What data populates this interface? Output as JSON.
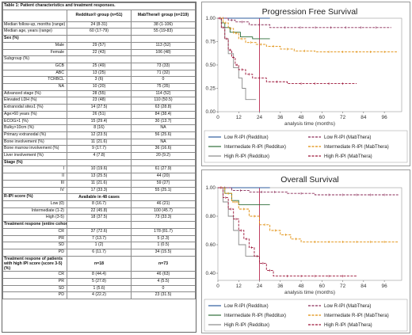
{
  "table": {
    "title": "Table 1: Patient characteristics and treatment responses.",
    "columns": [
      "",
      "Redditux® group (n=51)",
      "MabThera® group (n=219)"
    ],
    "rows": [
      {
        "label": "Median follow-up, months (range)",
        "a": "24 (8-31)",
        "b": "38 (1-106)"
      },
      {
        "label": "Median age, years (range)",
        "a": "60 (17-79)",
        "b": "55 (19-83)"
      },
      {
        "label": "Sex (%)",
        "a": "",
        "b": "",
        "kind": "section"
      },
      {
        "label": "Male",
        "a": "29 (57)",
        "b": "113 (52)",
        "kind": "sub"
      },
      {
        "label": "Female",
        "a": "22 (43)",
        "b": "106 (48)",
        "kind": "sub"
      },
      {
        "label": "Subgroup (%)",
        "a": "",
        "b": "",
        "kind": "plain"
      },
      {
        "label": "GCB",
        "a": "25 (49)",
        "b": "73 (33)",
        "kind": "sub"
      },
      {
        "label": "ABC",
        "a": "13 (25)",
        "b": "71 (32)",
        "kind": "sub"
      },
      {
        "label": "TCRBCL",
        "a": "3 (6)",
        "b": "0",
        "kind": "sub"
      },
      {
        "label": "NA",
        "a": "10 (20)",
        "b": "75 (35)",
        "kind": "sub"
      },
      {
        "label": "Advanced stage (%)",
        "a": "28 (55)",
        "b": "114 (52)"
      },
      {
        "label": "Elevated LDH (%)",
        "a": "23 (48)",
        "b": "110 (50.5)"
      },
      {
        "label": "Extranodal site≥1 (%)",
        "a": "14 (27.5)",
        "b": "63 (28.8)"
      },
      {
        "label": "Age>60 years (%)",
        "a": "26 (51)",
        "b": "84 (38.4)"
      },
      {
        "label": "ECOG>1 (%)",
        "a": "15 (29.4)",
        "b": "30 (13.7)"
      },
      {
        "label": "Bulky>10cm (%)",
        "a": "8 (16)",
        "b": "NA"
      },
      {
        "label": "Primary extranodal (%)",
        "a": "12 (23.5)",
        "b": "56 (25.6)"
      },
      {
        "label": "Bone involvement (%)",
        "a": "11 (21.6)",
        "b": "NA"
      },
      {
        "label": "Bone marrow involvement (%)",
        "a": "9 (17.7)",
        "b": "36 (16.6)"
      },
      {
        "label": "Liver involvement (%)",
        "a": "4 (7.8)",
        "b": "20 (9.2)"
      },
      {
        "label": "Stage (%)",
        "a": "",
        "b": "",
        "kind": "section"
      },
      {
        "label": "I",
        "a": "10 (19.6)",
        "b": "61 (27.9)",
        "kind": "sub"
      },
      {
        "label": "II",
        "a": "13 (25.5)",
        "b": "44 (20)",
        "kind": "sub"
      },
      {
        "label": "III",
        "a": "11 (21.6)",
        "b": "59 (27)",
        "kind": "sub"
      },
      {
        "label": "IV",
        "a": "17 (33.3)",
        "b": "55 (25.1)",
        "kind": "sub"
      },
      {
        "label": "R-IPI score (%)",
        "a": "Available in 48 cases",
        "b": "",
        "kind": "section",
        "wrap": "val"
      },
      {
        "label": "Low (0)",
        "a": "8 (16.7)",
        "b": "46 (21)",
        "kind": "sub"
      },
      {
        "label": "Intermediate (1-2)",
        "a": "22 (45.8)",
        "b": "100 (45.7)",
        "kind": "sub"
      },
      {
        "label": "High (3-5)",
        "a": "18 (37.5)",
        "b": "73 (33.3)",
        "kind": "sub"
      },
      {
        "label": "Treatment respone (entire cohort) (%)",
        "a": "",
        "b": "",
        "kind": "section"
      },
      {
        "label": "CR",
        "a": "37 (72.6)",
        "b": "178 (81.7)",
        "kind": "sub"
      },
      {
        "label": "PR",
        "a": "7 (13.7)",
        "b": "5 (2.3)",
        "kind": "sub"
      },
      {
        "label": "SD",
        "a": "1 (2)",
        "b": "1 (0.5)",
        "kind": "sub"
      },
      {
        "label": "PD",
        "a": "6 (11.7)",
        "b": "34 (15.5)",
        "kind": "sub"
      },
      {
        "label": "Treatment respone of patients with high IPI score (score 3-5) (%)",
        "a": "n=18",
        "b": "n=73",
        "kind": "section",
        "wrap": "sec"
      },
      {
        "label": "CR",
        "a": "8 (44.4)",
        "b": "46 (63)",
        "kind": "sub"
      },
      {
        "label": "PR",
        "a": "5 (27.8)",
        "b": "4 (5.5)",
        "kind": "sub"
      },
      {
        "label": "SD",
        "a": "1 (5.6)",
        "b": "0",
        "kind": "sub"
      },
      {
        "label": "PD",
        "a": "4 (22.2)",
        "b": "23 (31.5)",
        "kind": "sub"
      }
    ]
  },
  "chart_data": [
    {
      "type": "line",
      "title": "Progression Free Survival",
      "xlabel": "analysis time (months)",
      "ylabel": "",
      "xlim": [
        0,
        106
      ],
      "ylim": [
        0,
        1
      ],
      "xticks": [
        0,
        12,
        24,
        36,
        48,
        60,
        72,
        84,
        96
      ],
      "yticks": [
        0.0,
        0.25,
        0.5,
        0.75,
        1.0
      ],
      "reference_line_x": 24,
      "legend": "bottom",
      "series": [
        {
          "name": "Low R-IPI (Redditux)",
          "color": "#2f5d9e",
          "dash": "",
          "censor": false,
          "points": [
            [
              0,
              1
            ],
            [
              30,
              1
            ]
          ]
        },
        {
          "name": "Low R-IPI (MabThera)",
          "color": "#8a2b57",
          "dash": "3,1.5",
          "censor": true,
          "points": [
            [
              0,
              1
            ],
            [
              6,
              0.98
            ],
            [
              10,
              0.96
            ],
            [
              18,
              0.93
            ],
            [
              30,
              0.9
            ],
            [
              100,
              0.9
            ]
          ]
        },
        {
          "name": "Intermediate R-IPI (Redditux)",
          "color": "#2e6e3a",
          "dash": "",
          "censor": false,
          "points": [
            [
              0,
              1
            ],
            [
              2,
              0.95
            ],
            [
              4,
              0.9
            ],
            [
              7,
              0.85
            ],
            [
              13,
              0.8
            ],
            [
              20,
              0.78
            ],
            [
              30,
              0.78
            ]
          ]
        },
        {
          "name": "Intermediate R-IPI (MabThera)",
          "color": "#e08e0b",
          "dash": "3,1.5",
          "censor": true,
          "points": [
            [
              0,
              1
            ],
            [
              3,
              0.95
            ],
            [
              6,
              0.89
            ],
            [
              9,
              0.84
            ],
            [
              12,
              0.78
            ],
            [
              16,
              0.74
            ],
            [
              22,
              0.72
            ],
            [
              28,
              0.7
            ],
            [
              36,
              0.67
            ],
            [
              44,
              0.65
            ],
            [
              56,
              0.64
            ],
            [
              104,
              0.64
            ]
          ]
        },
        {
          "name": "High R-IPI (Redditux)",
          "color": "#8a8a8a",
          "dash": "",
          "censor": false,
          "points": [
            [
              0,
              1
            ],
            [
              2,
              0.9
            ],
            [
              4,
              0.78
            ],
            [
              6,
              0.62
            ],
            [
              9,
              0.47
            ],
            [
              12,
              0.36
            ],
            [
              14,
              0.25
            ],
            [
              16,
              0.13
            ],
            [
              22,
              0.13
            ]
          ]
        },
        {
          "name": "High R-IPI (MabThera)",
          "color": "#9c1438",
          "dash": "3,1.5",
          "censor": true,
          "points": [
            [
              0,
              1
            ],
            [
              2,
              0.9
            ],
            [
              4,
              0.78
            ],
            [
              6,
              0.66
            ],
            [
              8,
              0.58
            ],
            [
              10,
              0.5
            ],
            [
              12,
              0.45
            ],
            [
              16,
              0.4
            ],
            [
              20,
              0.36
            ],
            [
              28,
              0.32
            ],
            [
              40,
              0.3
            ],
            [
              80,
              0.3
            ]
          ]
        }
      ]
    },
    {
      "type": "line",
      "title": "Overall Survival",
      "xlabel": "analysis time (months)",
      "ylabel": "",
      "xlim": [
        0,
        106
      ],
      "ylim": [
        0.35,
        1
      ],
      "xticks": [
        0,
        12,
        24,
        36,
        48,
        60,
        72,
        84,
        96
      ],
      "yticks": [
        0.4,
        0.6,
        0.8,
        1.0
      ],
      "reference_line_x": 24,
      "legend": "bottom",
      "series": [
        {
          "name": "Low R-IPI (Redditux)",
          "color": "#2f5d9e",
          "dash": "",
          "censor": false,
          "points": [
            [
              0,
              1
            ],
            [
              30,
              1
            ]
          ]
        },
        {
          "name": "Low R-IPI (MabThera)",
          "color": "#8a2b57",
          "dash": "3,1.5",
          "censor": true,
          "points": [
            [
              0,
              1
            ],
            [
              8,
              0.98
            ],
            [
              18,
              0.97
            ],
            [
              40,
              0.96
            ],
            [
              56,
              0.95
            ],
            [
              104,
              0.95
            ]
          ]
        },
        {
          "name": "Intermediate R-IPI (Redditux)",
          "color": "#2e6e3a",
          "dash": "",
          "censor": false,
          "points": [
            [
              0,
              1
            ],
            [
              4,
              0.96
            ],
            [
              8,
              0.91
            ],
            [
              12,
              0.88
            ],
            [
              30,
              0.88
            ]
          ]
        },
        {
          "name": "Intermediate R-IPI (MabThera)",
          "color": "#e08e0b",
          "dash": "3,1.5",
          "censor": true,
          "points": [
            [
              0,
              1
            ],
            [
              4,
              0.96
            ],
            [
              8,
              0.9
            ],
            [
              12,
              0.85
            ],
            [
              18,
              0.8
            ],
            [
              24,
              0.74
            ],
            [
              30,
              0.7
            ],
            [
              36,
              0.67
            ],
            [
              42,
              0.64
            ],
            [
              48,
              0.62
            ],
            [
              104,
              0.62
            ]
          ]
        },
        {
          "name": "High R-IPI (Redditux)",
          "color": "#8a8a8a",
          "dash": "",
          "censor": false,
          "points": [
            [
              0,
              1
            ],
            [
              3,
              0.9
            ],
            [
              6,
              0.8
            ],
            [
              9,
              0.7
            ],
            [
              12,
              0.6
            ],
            [
              16,
              0.52
            ],
            [
              20,
              0.52
            ],
            [
              24,
              0.52
            ]
          ]
        },
        {
          "name": "High R-IPI (MabThera)",
          "color": "#9c1438",
          "dash": "3,1.5",
          "censor": true,
          "points": [
            [
              0,
              1
            ],
            [
              3,
              0.93
            ],
            [
              6,
              0.85
            ],
            [
              9,
              0.78
            ],
            [
              12,
              0.7
            ],
            [
              15,
              0.64
            ],
            [
              18,
              0.58
            ],
            [
              21,
              0.52
            ],
            [
              24,
              0.47
            ],
            [
              28,
              0.42
            ],
            [
              32,
              0.38
            ],
            [
              80,
              0.38
            ]
          ]
        }
      ]
    }
  ]
}
